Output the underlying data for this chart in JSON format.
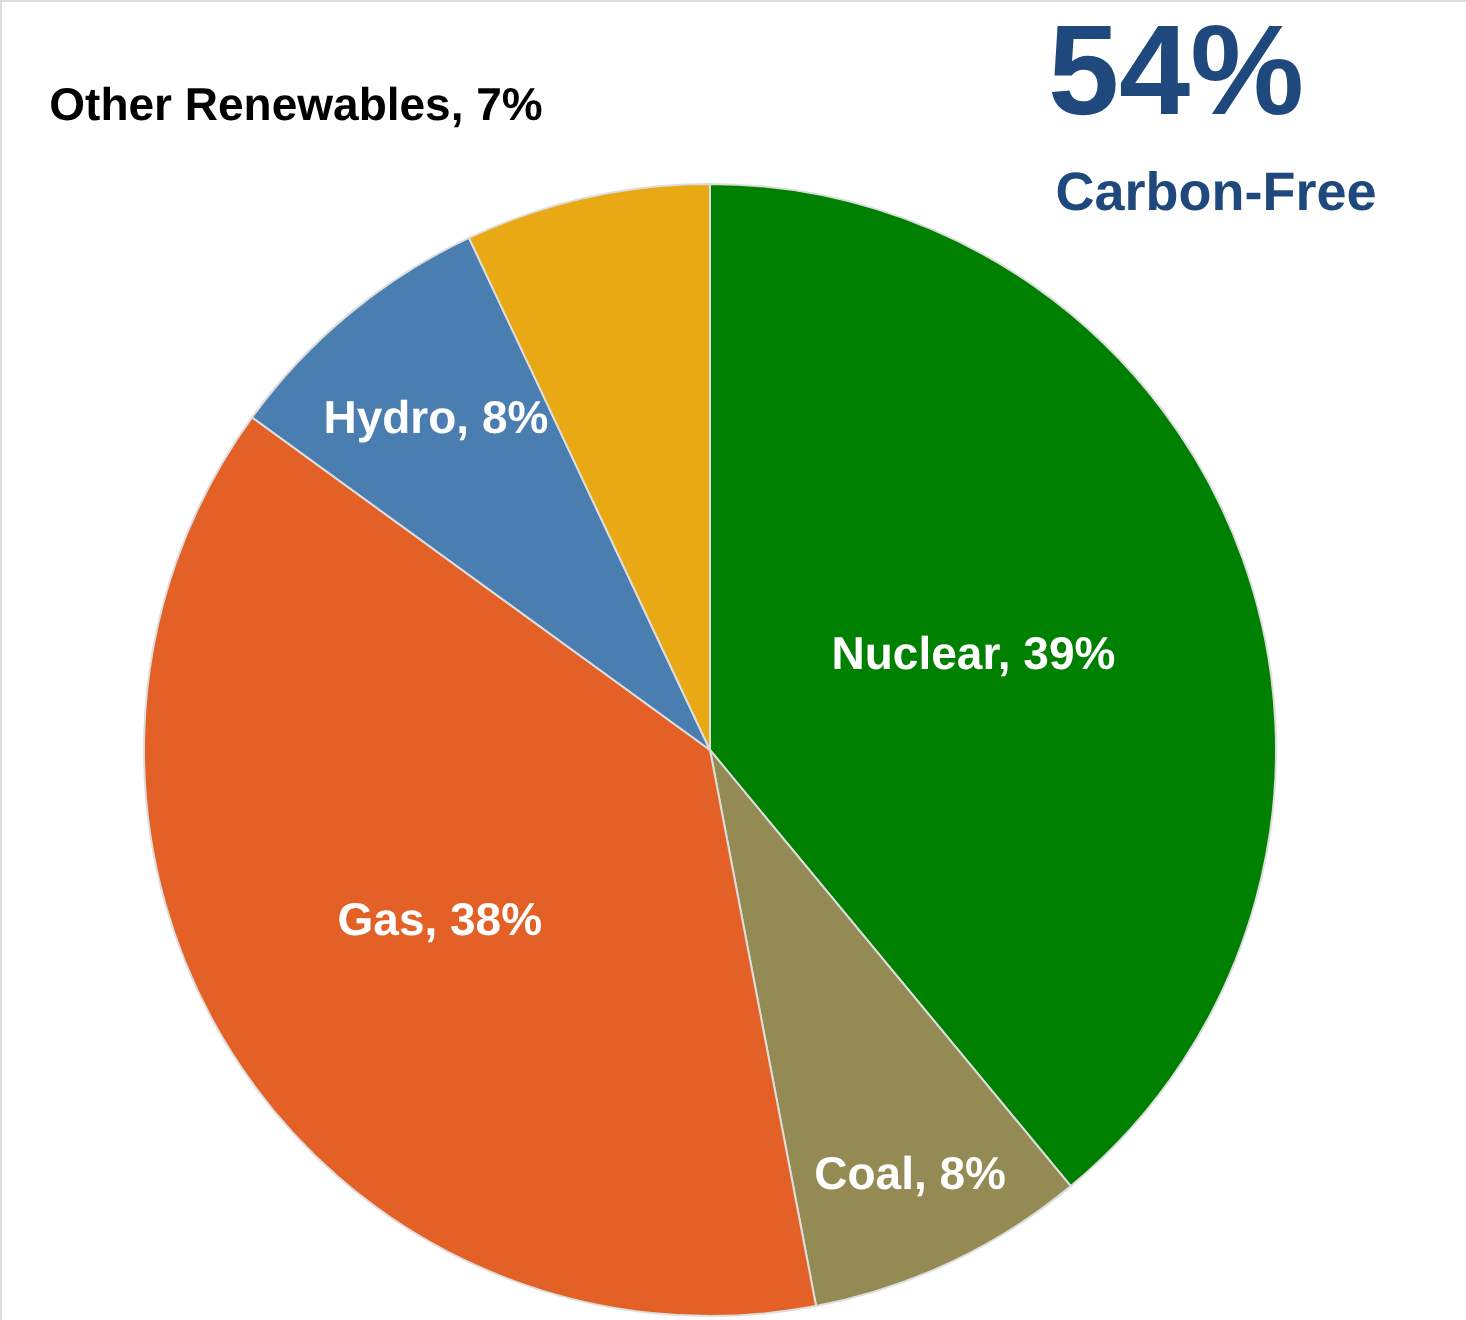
{
  "chart_data": {
    "type": "pie",
    "categories": [
      "Nuclear, 39%",
      "Coal, 8%",
      "Gas, 38%",
      "Hydro, 8%",
      "Other Renewables, 7%"
    ],
    "values": [
      39,
      8,
      38,
      8,
      7
    ],
    "colors": [
      "#008000",
      "#948b54",
      "#e36026",
      "#4a7eb0",
      "#e8a914"
    ],
    "annotations": [
      "54%",
      "Carbon-Free"
    ]
  }
}
